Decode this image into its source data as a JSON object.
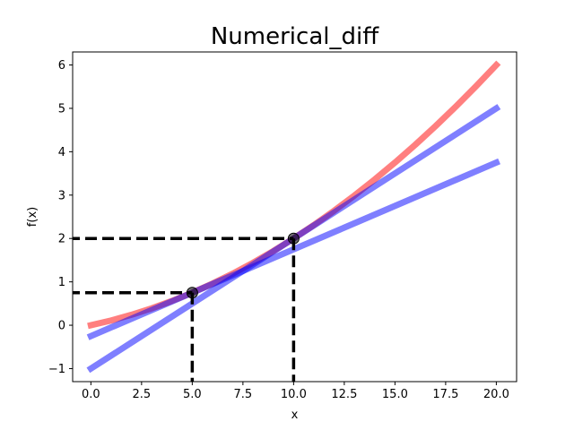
{
  "chart_data": {
    "type": "line",
    "title": "Numerical_diff",
    "xlabel": "x",
    "ylabel": "f(x)",
    "xlim": [
      -0.9,
      21.0
    ],
    "ylim": [
      -1.3,
      6.3
    ],
    "xticks": [
      0.0,
      2.5,
      5.0,
      7.5,
      10.0,
      12.5,
      15.0,
      17.5,
      20.0
    ],
    "xtick_labels": [
      "0.0",
      "2.5",
      "5.0",
      "7.5",
      "10.0",
      "12.5",
      "15.0",
      "17.5",
      "20.0"
    ],
    "yticks": [
      -1,
      0,
      1,
      2,
      3,
      4,
      5,
      6
    ],
    "ytick_labels": [
      "−1",
      "0",
      "1",
      "2",
      "3",
      "4",
      "5",
      "6"
    ],
    "grid": false,
    "series": [
      {
        "kind": "curve",
        "color": "#ff0000",
        "opacity": 0.5,
        "x": [
          0,
          1,
          2,
          3,
          4,
          5,
          6,
          7,
          8,
          9,
          10,
          11,
          12,
          13,
          14,
          15,
          16,
          17,
          18,
          19,
          20
        ],
        "y": [
          0.0,
          0.11,
          0.24,
          0.39,
          0.56,
          0.75,
          0.96,
          1.19,
          1.44,
          1.71,
          2.0,
          2.31,
          2.64,
          2.99,
          3.36,
          3.75,
          4.16,
          4.59,
          5.04,
          5.51,
          6.0
        ]
      },
      {
        "kind": "line",
        "color": "#0000ff",
        "opacity": 0.5,
        "x": [
          0,
          20
        ],
        "y": [
          -0.25,
          3.75
        ]
      },
      {
        "kind": "line",
        "color": "#0000ff",
        "opacity": 0.5,
        "x": [
          0,
          20
        ],
        "y": [
          -1.0,
          5.0
        ]
      }
    ],
    "points": [
      {
        "x": 5,
        "y": 0.75
      },
      {
        "x": 10,
        "y": 2.0
      }
    ],
    "guide_color": "#000000"
  }
}
